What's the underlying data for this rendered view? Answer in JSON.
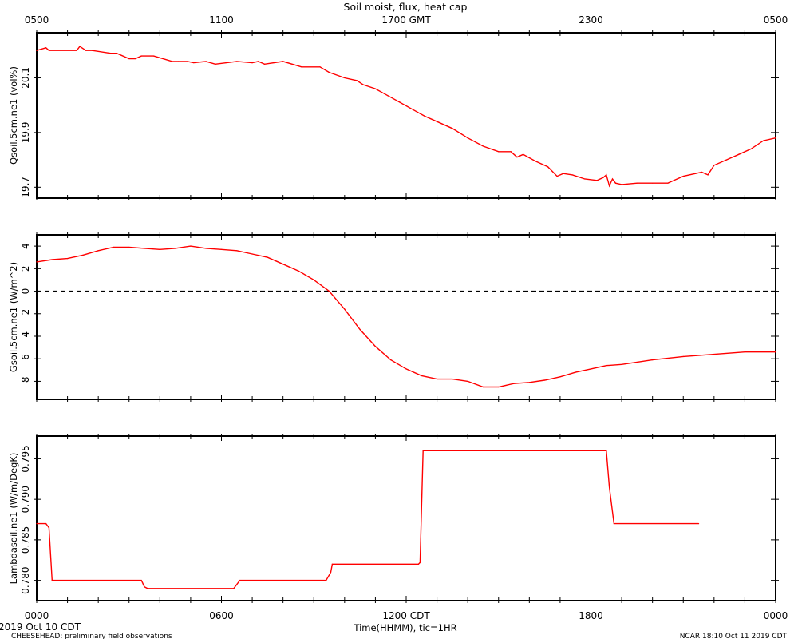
{
  "title": "Soil moist, flux, heat cap",
  "top_axis": {
    "label_hours": [
      0,
      6,
      12,
      18,
      24
    ],
    "labels": [
      "0500",
      "1100",
      "1700 GMT",
      "2300",
      "0500"
    ]
  },
  "bottom_axis": {
    "label_hours": [
      0,
      6,
      12,
      18,
      24
    ],
    "labels": [
      "0000",
      "0600",
      "1200 CDT",
      "1800",
      "0000"
    ],
    "xlabel": "Time(HHMM), tic=1HR"
  },
  "footer": {
    "left_date": "2019 Oct 10 CDT",
    "left_note": "CHEESEHEAD: preliminary field observations",
    "right_note": "NCAR 18:10 Oct 11 2019 CDT"
  },
  "colors": {
    "series": "#ff0000",
    "frame": "#000000"
  },
  "chart_data": [
    {
      "type": "line",
      "ylabel": "Qsoil.5cm.ne1 (vol%)",
      "ylim": [
        19.66,
        20.265
      ],
      "yticks": [
        19.7,
        19.9,
        20.1
      ],
      "ytick_labels": [
        "19.7",
        "19.9",
        "20.1"
      ],
      "x_unit": "hour CDT",
      "series": [
        {
          "x": [
            0,
            0.3,
            0.4,
            1.3,
            1.4,
            1.6,
            1.8,
            2.4,
            2.6,
            3.0,
            3.2,
            3.4,
            3.8,
            4.4,
            4.6,
            4.9,
            5.1,
            5.5,
            5.8,
            6.5,
            7.0,
            7.2,
            7.4,
            8.0,
            8.6,
            9.2,
            9.5,
            10.0,
            10.4,
            10.6,
            11.0,
            11.4,
            11.8,
            12.2,
            12.6,
            13.0,
            13.5,
            14.0,
            14.5,
            15.0,
            15.4,
            15.6,
            15.8,
            16.2,
            16.6,
            16.9,
            17.1,
            17.4,
            17.8,
            18.2,
            18.4,
            18.5,
            18.6,
            18.7,
            18.8,
            19.0,
            19.5,
            20.0,
            20.5,
            20.8,
            21.0,
            21.4,
            21.6,
            21.8,
            22.0,
            22.4,
            22.8,
            23.2,
            23.6,
            24.0
          ],
          "y": [
            20.2,
            20.21,
            20.2,
            20.2,
            20.215,
            20.2,
            20.2,
            20.19,
            20.19,
            20.17,
            20.17,
            20.18,
            20.18,
            20.16,
            20.16,
            20.16,
            20.155,
            20.16,
            20.15,
            20.16,
            20.155,
            20.16,
            20.15,
            20.16,
            20.14,
            20.14,
            20.12,
            20.1,
            20.09,
            20.075,
            20.06,
            20.035,
            20.01,
            19.985,
            19.96,
            19.94,
            19.915,
            19.88,
            19.85,
            19.83,
            19.83,
            19.81,
            19.82,
            19.795,
            19.775,
            19.74,
            19.75,
            19.745,
            19.73,
            19.725,
            19.735,
            19.745,
            19.705,
            19.73,
            19.715,
            19.71,
            19.715,
            19.715,
            19.715,
            19.73,
            19.74,
            19.75,
            19.755,
            19.745,
            19.78,
            19.8,
            19.82,
            19.84,
            19.87,
            19.88
          ]
        }
      ]
    },
    {
      "type": "line",
      "ylabel": "Gsoil.5cm.ne1 (W/m^2)",
      "ylim": [
        -9.6,
        5.0
      ],
      "yticks": [
        -8,
        -6,
        -4,
        -2,
        0,
        2,
        4
      ],
      "ytick_labels": [
        "-8",
        "-6",
        "-4",
        "-2",
        "0",
        "2",
        "4"
      ],
      "zero_line": 0,
      "x_unit": "hour CDT",
      "series": [
        {
          "x": [
            0,
            0.5,
            1.0,
            1.5,
            2.0,
            2.5,
            3.0,
            3.5,
            4.0,
            4.5,
            5.0,
            5.5,
            6.0,
            6.5,
            7.0,
            7.5,
            8.0,
            8.5,
            9.0,
            9.5,
            10.0,
            10.5,
            11.0,
            11.5,
            12.0,
            12.5,
            13.0,
            13.5,
            14.0,
            14.5,
            15.0,
            15.5,
            16.0,
            16.5,
            17.0,
            17.5,
            18.0,
            18.5,
            19.0,
            19.5,
            20.0,
            21.0,
            22.0,
            23.0,
            24.0
          ],
          "y": [
            2.6,
            2.8,
            2.9,
            3.2,
            3.6,
            3.9,
            3.9,
            3.8,
            3.7,
            3.8,
            4.0,
            3.8,
            3.7,
            3.6,
            3.3,
            3.0,
            2.4,
            1.8,
            1.0,
            0.0,
            -1.6,
            -3.4,
            -4.9,
            -6.1,
            -6.9,
            -7.5,
            -7.8,
            -7.8,
            -8.0,
            -8.5,
            -8.5,
            -8.2,
            -8.1,
            -7.9,
            -7.6,
            -7.2,
            -6.9,
            -6.6,
            -6.5,
            -6.3,
            -6.1,
            -5.8,
            -5.6,
            -5.4,
            -5.4
          ]
        }
      ]
    },
    {
      "type": "line",
      "ylabel": "Lambdasoil.ne1 (W/m/DegK)",
      "ylim": [
        0.7775,
        0.7978
      ],
      "yticks": [
        0.78,
        0.785,
        0.79,
        0.795
      ],
      "ytick_labels": [
        "0.780",
        "0.785",
        "0.790",
        "0.795"
      ],
      "x_unit": "hour CDT",
      "series": [
        {
          "x": [
            0,
            0.3,
            0.4,
            0.5,
            3.4,
            3.5,
            3.6,
            6.4,
            6.6,
            9.4,
            9.55,
            9.6,
            12.4,
            12.45,
            12.55,
            18.5,
            18.6,
            18.75,
            21.5
          ],
          "y": [
            0.787,
            0.787,
            0.7865,
            0.78,
            0.78,
            0.7792,
            0.779,
            0.779,
            0.78,
            0.78,
            0.781,
            0.782,
            0.782,
            0.7822,
            0.796,
            0.796,
            0.7915,
            0.787,
            0.787
          ]
        }
      ]
    }
  ]
}
